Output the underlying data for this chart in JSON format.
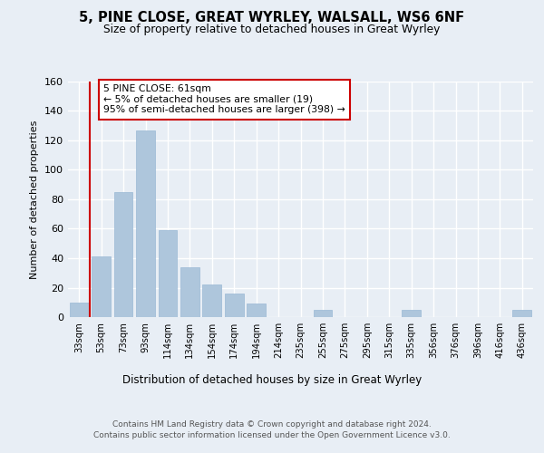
{
  "title": "5, PINE CLOSE, GREAT WYRLEY, WALSALL, WS6 6NF",
  "subtitle": "Size of property relative to detached houses in Great Wyrley",
  "xlabel": "Distribution of detached houses by size in Great Wyrley",
  "ylabel": "Number of detached properties",
  "bar_labels": [
    "33sqm",
    "53sqm",
    "73sqm",
    "93sqm",
    "114sqm",
    "134sqm",
    "154sqm",
    "174sqm",
    "194sqm",
    "214sqm",
    "235sqm",
    "255sqm",
    "275sqm",
    "295sqm",
    "315sqm",
    "335sqm",
    "356sqm",
    "376sqm",
    "396sqm",
    "416sqm",
    "436sqm"
  ],
  "bar_values": [
    10,
    41,
    85,
    127,
    59,
    34,
    22,
    16,
    9,
    0,
    0,
    5,
    0,
    0,
    0,
    5,
    0,
    0,
    0,
    0,
    5
  ],
  "bar_color": "#aec6dc",
  "bar_edge_color": "#9ab8d4",
  "background_color": "#e8eef5",
  "grid_color": "#ffffff",
  "vline_color": "#cc0000",
  "annotation_text": "5 PINE CLOSE: 61sqm\n← 5% of detached houses are smaller (19)\n95% of semi-detached houses are larger (398) →",
  "annotation_box_color": "#ffffff",
  "annotation_box_edge": "#cc0000",
  "ylim": [
    0,
    160
  ],
  "yticks": [
    0,
    20,
    40,
    60,
    80,
    100,
    120,
    140,
    160
  ],
  "footer1": "Contains HM Land Registry data © Crown copyright and database right 2024.",
  "footer2": "Contains public sector information licensed under the Open Government Licence v3.0."
}
